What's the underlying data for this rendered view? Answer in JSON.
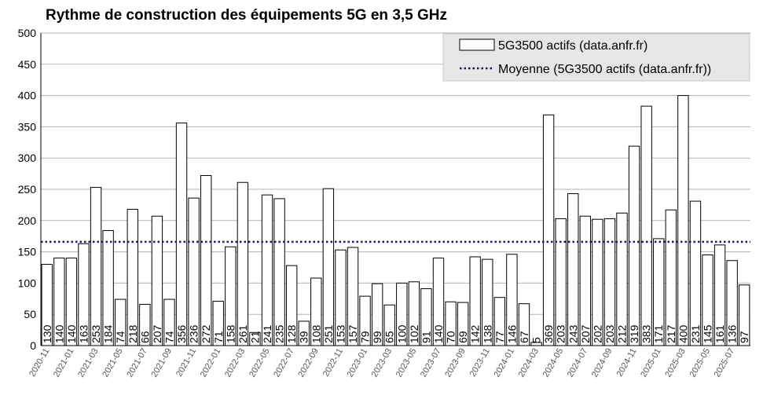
{
  "chart_data": {
    "type": "bar",
    "title": "Rythme de construction des équipements 5G en 3,5 GHz",
    "xlabel": "",
    "ylabel": "",
    "ylim": [
      0,
      500
    ],
    "yticks": [
      0,
      50,
      100,
      150,
      200,
      250,
      300,
      350,
      400,
      450,
      500
    ],
    "grid": true,
    "legend_position": "top-right",
    "categories": [
      "2020-11",
      "2020-12",
      "2021-01",
      "2021-02",
      "2021-03",
      "2021-04",
      "2021-05",
      "2021-06",
      "2021-07",
      "2021-08",
      "2021-09",
      "2021-10",
      "2021-11",
      "2021-12",
      "2022-01",
      "2022-02",
      "2022-03",
      "2022-04",
      "2022-05",
      "2022-06",
      "2022-07",
      "2022-08",
      "2022-09",
      "2022-10",
      "2022-11",
      "2022-12",
      "2023-01",
      "2023-02",
      "2023-03",
      "2023-04",
      "2023-05",
      "2023-06",
      "2023-07",
      "2023-08",
      "2023-09",
      "2023-10",
      "2023-11",
      "2023-12",
      "2024-01",
      "2024-02",
      "2024-03",
      "2024-04",
      "2024-05",
      "2024-06",
      "2024-07",
      "2024-08",
      "2024-09",
      "2024-10",
      "2024-11",
      "2024-12",
      "2025-01",
      "2025-02",
      "2025-03",
      "2025-04",
      "2025-05",
      "2025-06",
      "2025-07",
      "2025-08"
    ],
    "x_tick_labels": [
      "2020-11",
      "2021-01",
      "2021-03",
      "2021-05",
      "2021-07",
      "2021-09",
      "2021-11",
      "2022-01",
      "2022-03",
      "2022-05",
      "2022-07",
      "2022-09",
      "2022-11",
      "2023-01",
      "2023-03",
      "2023-05",
      "2023-07",
      "2023-09",
      "2023-11",
      "2024-01",
      "2024-03",
      "2024-05",
      "2024-07",
      "2024-09",
      "2024-11",
      "2025-01",
      "2025-03",
      "2025-05",
      "2025-07"
    ],
    "series": [
      {
        "name": "5G3500 actifs (data.anfr.fr)",
        "values": [
          130,
          140,
          140,
          163,
          253,
          184,
          74,
          218,
          66,
          207,
          74,
          356,
          236,
          272,
          71,
          158,
          261,
          21,
          241,
          235,
          128,
          39,
          108,
          251,
          153,
          157,
          79,
          99,
          65,
          100,
          102,
          91,
          140,
          70,
          69,
          142,
          138,
          77,
          146,
          67,
          5,
          369,
          203,
          243,
          207,
          202,
          203,
          212,
          319,
          383,
          171,
          217,
          400,
          231,
          145,
          161,
          136,
          97
        ]
      }
    ],
    "average": {
      "name": "Moyenne (5G3500 actifs (data.anfr.fr))",
      "value": 166
    },
    "colors": {
      "bar_fill": "#ffffff",
      "bar_stroke": "#000000",
      "average_line": "#1a1a6e",
      "grid": "#b3b3b3",
      "legend_bg": "#e6e6e6"
    }
  }
}
